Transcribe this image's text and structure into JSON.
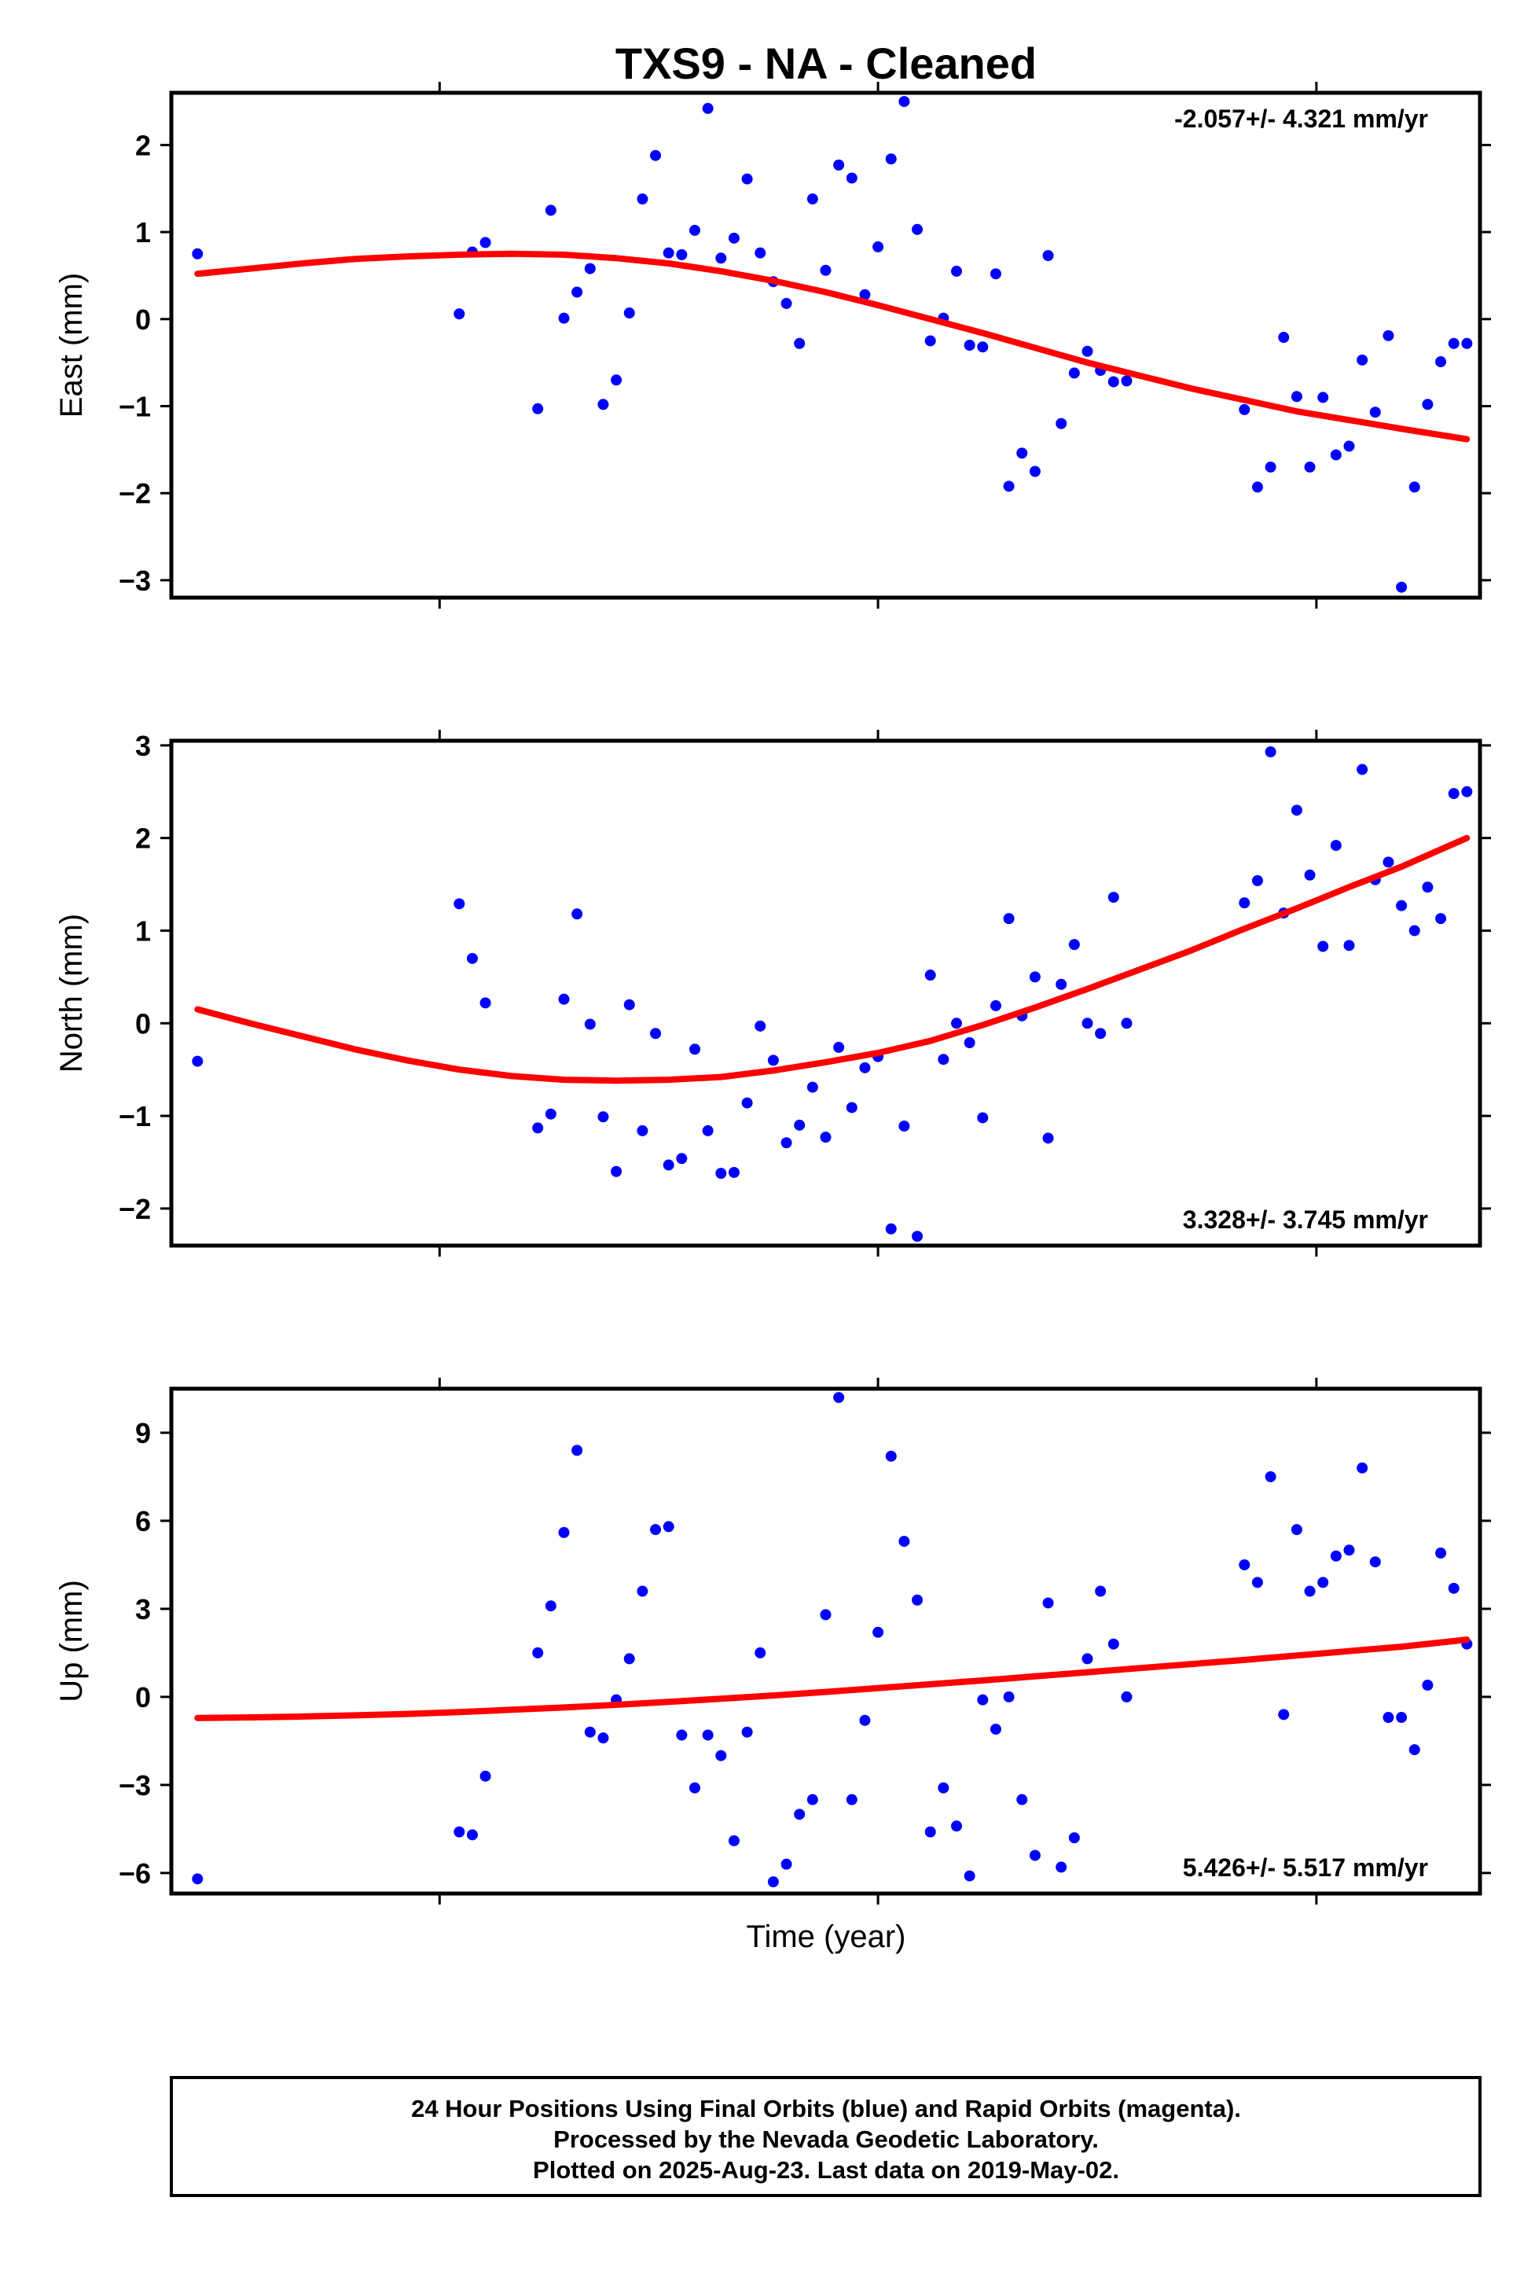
{
  "title": "TXS9  - NA - Cleaned",
  "xlabel": "Time (year)",
  "colors": {
    "points": "#0000ff",
    "fit": "#ff0000",
    "frame": "#000000"
  },
  "footer": {
    "line1": "24 Hour Positions Using Final Orbits (blue) and Rapid Orbits (magenta).",
    "line2": "Processed by the Nevada Geodetic Laboratory.",
    "line3": "Plotted on 2025-Aug-23. Last data on 2019-May-02."
  },
  "chart_data": [
    {
      "type": "scatter",
      "ylabel": "East (mm)",
      "rate_text": "-2.057+/- 4.321 mm/yr",
      "xlim": [
        0,
        100
      ],
      "ylim": [
        -3.2,
        2.6
      ],
      "yticks": [
        2,
        1,
        0,
        -1,
        -2,
        -3
      ],
      "ytick_labels": [
        "2",
        "1",
        "0",
        "−1",
        "−2",
        "−3"
      ],
      "x": [
        2.0,
        22.0,
        23.0,
        24.0,
        28.0,
        29.0,
        30.0,
        31.0,
        32.0,
        33.0,
        34.0,
        35.0,
        36.0,
        37.0,
        38.0,
        39.0,
        40.0,
        41.0,
        42.0,
        43.0,
        44.0,
        45.0,
        46.0,
        47.0,
        48.0,
        49.0,
        50.0,
        51.0,
        52.0,
        53.0,
        54.0,
        55.0,
        56.0,
        57.0,
        58.0,
        59.0,
        60.0,
        61.0,
        62.0,
        63.0,
        64.0,
        65.0,
        66.0,
        67.0,
        68.0,
        69.0,
        70.0,
        71.0,
        72.0,
        73.0,
        82.0,
        83.0,
        84.0,
        85.0,
        86.0,
        87.0,
        88.0,
        89.0,
        90.0,
        91.0,
        92.0,
        93.0,
        94.0,
        95.0,
        96.0,
        97.0,
        98.0,
        99.0
      ],
      "y": [
        0.75,
        0.06,
        0.77,
        0.88,
        -1.03,
        1.25,
        0.01,
        0.31,
        0.58,
        -0.98,
        -0.7,
        0.07,
        1.38,
        1.88,
        0.76,
        0.74,
        1.02,
        2.42,
        0.7,
        0.93,
        1.61,
        0.76,
        0.43,
        0.18,
        -0.28,
        1.38,
        0.56,
        1.77,
        1.62,
        0.28,
        0.83,
        1.84,
        2.5,
        1.03,
        -0.25,
        0.01,
        0.55,
        -0.3,
        -0.32,
        0.52,
        -1.92,
        -1.54,
        -1.75,
        0.73,
        -1.2,
        -0.62,
        -0.37,
        -0.59,
        -0.72,
        -0.71,
        -1.04,
        -1.93,
        -1.7,
        -0.21,
        -0.89,
        -1.7,
        -0.9,
        -1.56,
        -1.46,
        -0.47,
        -1.07,
        -0.19,
        -3.08,
        -1.93,
        -0.98,
        -0.49,
        -0.28,
        -0.28
      ],
      "fit": {
        "x": [
          2,
          6,
          10,
          14,
          18,
          22,
          26,
          30,
          34,
          38,
          42,
          46,
          50,
          54,
          58,
          62,
          66,
          70,
          74,
          78,
          82,
          86,
          90,
          94,
          99
        ],
        "y": [
          0.52,
          0.58,
          0.64,
          0.69,
          0.72,
          0.74,
          0.75,
          0.74,
          0.7,
          0.64,
          0.55,
          0.44,
          0.31,
          0.16,
          0.0,
          -0.16,
          -0.33,
          -0.5,
          -0.65,
          -0.8,
          -0.93,
          -1.06,
          -1.16,
          -1.26,
          -1.38
        ]
      }
    },
    {
      "type": "scatter",
      "ylabel": "North (mm)",
      "rate_text": "3.328+/- 3.745 mm/yr",
      "xlim": [
        0,
        100
      ],
      "ylim": [
        -2.4,
        3.05
      ],
      "yticks": [
        3,
        2,
        1,
        0,
        -1,
        -2
      ],
      "ytick_labels": [
        "3",
        "2",
        "1",
        "0",
        "−1",
        "−2"
      ],
      "x": [
        2.0,
        22.0,
        23.0,
        24.0,
        28.0,
        29.0,
        30.0,
        31.0,
        32.0,
        33.0,
        34.0,
        35.0,
        36.0,
        37.0,
        38.0,
        39.0,
        40.0,
        41.0,
        42.0,
        43.0,
        44.0,
        45.0,
        46.0,
        47.0,
        48.0,
        49.0,
        50.0,
        51.0,
        52.0,
        53.0,
        54.0,
        55.0,
        56.0,
        57.0,
        58.0,
        59.0,
        60.0,
        61.0,
        62.0,
        63.0,
        64.0,
        65.0,
        66.0,
        67.0,
        68.0,
        69.0,
        70.0,
        71.0,
        72.0,
        73.0,
        82.0,
        83.0,
        84.0,
        85.0,
        86.0,
        87.0,
        88.0,
        89.0,
        90.0,
        91.0,
        92.0,
        93.0,
        94.0,
        95.0,
        96.0,
        97.0,
        98.0,
        99.0
      ],
      "y": [
        -0.41,
        1.29,
        0.7,
        0.22,
        -1.13,
        -0.98,
        0.26,
        1.18,
        -0.01,
        -1.01,
        -1.6,
        0.2,
        -1.16,
        -0.11,
        -1.53,
        -1.46,
        -0.28,
        -1.16,
        -1.62,
        -1.61,
        -0.86,
        -0.03,
        -0.4,
        -1.29,
        -1.1,
        -0.69,
        -1.23,
        -0.26,
        -0.91,
        -0.48,
        -0.36,
        -2.22,
        -1.11,
        -2.3,
        0.52,
        -0.39,
        0.0,
        -0.21,
        -1.02,
        0.19,
        1.13,
        0.08,
        0.5,
        -1.24,
        0.42,
        0.85,
        0.0,
        -0.11,
        1.36,
        0.0,
        1.3,
        1.54,
        2.93,
        1.19,
        2.3,
        1.6,
        0.83,
        1.92,
        0.84,
        2.74,
        1.55,
        1.74,
        1.27,
        1.0,
        1.47,
        1.13,
        2.48,
        2.5
      ],
      "fit": {
        "x": [
          2,
          6,
          10,
          14,
          18,
          22,
          26,
          30,
          34,
          38,
          42,
          46,
          50,
          54,
          58,
          62,
          66,
          70,
          74,
          78,
          82,
          86,
          90,
          94,
          99
        ],
        "y": [
          0.15,
          0.0,
          -0.14,
          -0.28,
          -0.4,
          -0.5,
          -0.57,
          -0.61,
          -0.62,
          -0.61,
          -0.58,
          -0.51,
          -0.42,
          -0.32,
          -0.19,
          -0.02,
          0.17,
          0.37,
          0.58,
          0.79,
          1.02,
          1.24,
          1.47,
          1.69,
          2.0
        ]
      }
    },
    {
      "type": "scatter",
      "ylabel": "Up (mm)",
      "rate_text": "5.426+/- 5.517 mm/yr",
      "xlim": [
        0,
        100
      ],
      "ylim": [
        -6.7,
        10.5
      ],
      "yticks": [
        9,
        6,
        3,
        0,
        -3,
        -6
      ],
      "ytick_labels": [
        "9",
        "6",
        "3",
        "0",
        "−3",
        "−6"
      ],
      "x": [
        2.0,
        22.0,
        23.0,
        24.0,
        28.0,
        29.0,
        30.0,
        31.0,
        32.0,
        33.0,
        34.0,
        35.0,
        36.0,
        37.0,
        38.0,
        39.0,
        40.0,
        41.0,
        42.0,
        43.0,
        44.0,
        45.0,
        46.0,
        47.0,
        48.0,
        49.0,
        50.0,
        51.0,
        52.0,
        53.0,
        54.0,
        55.0,
        56.0,
        57.0,
        58.0,
        59.0,
        60.0,
        61.0,
        62.0,
        63.0,
        64.0,
        65.0,
        66.0,
        67.0,
        68.0,
        69.0,
        70.0,
        71.0,
        72.0,
        73.0,
        82.0,
        83.0,
        84.0,
        85.0,
        86.0,
        87.0,
        88.0,
        89.0,
        90.0,
        91.0,
        92.0,
        93.0,
        94.0,
        95.0,
        96.0,
        97.0,
        98.0,
        99.0
      ],
      "y": [
        -6.2,
        -4.6,
        -4.7,
        -2.7,
        1.5,
        3.1,
        5.6,
        8.4,
        -1.2,
        -1.4,
        -0.1,
        1.3,
        3.6,
        5.7,
        5.8,
        -1.3,
        -3.1,
        -1.3,
        -2.0,
        -4.9,
        -1.2,
        1.5,
        -6.3,
        -5.7,
        -4.0,
        -3.5,
        2.8,
        10.2,
        -3.5,
        -0.8,
        2.2,
        8.2,
        5.3,
        3.3,
        -4.6,
        -3.1,
        -4.4,
        -6.1,
        -0.1,
        -1.1,
        0.0,
        -3.5,
        -5.4,
        3.2,
        -5.8,
        -4.8,
        1.3,
        3.6,
        1.8,
        0.0,
        4.5,
        3.9,
        7.5,
        -0.6,
        5.7,
        3.6,
        3.9,
        4.8,
        5.0,
        7.8,
        4.6,
        -0.7,
        -0.7,
        -1.8,
        0.4,
        4.9,
        3.7,
        1.8
      ],
      "fit": {
        "x": [
          2,
          6,
          10,
          14,
          18,
          22,
          26,
          30,
          34,
          38,
          42,
          46,
          50,
          54,
          58,
          62,
          66,
          70,
          74,
          78,
          82,
          86,
          90,
          94,
          99
        ],
        "y": [
          -0.72,
          -0.7,
          -0.67,
          -0.63,
          -0.58,
          -0.52,
          -0.44,
          -0.36,
          -0.27,
          -0.17,
          -0.06,
          0.05,
          0.17,
          0.3,
          0.43,
          0.56,
          0.7,
          0.84,
          0.98,
          1.12,
          1.26,
          1.41,
          1.56,
          1.71,
          1.95
        ]
      }
    }
  ]
}
